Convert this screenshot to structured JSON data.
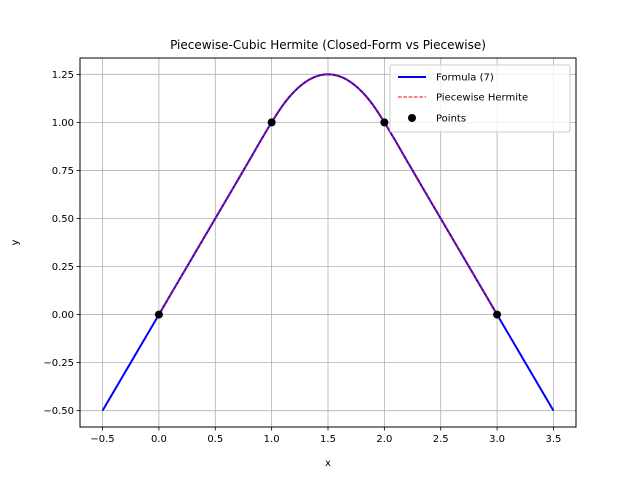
{
  "chart_data": {
    "type": "line",
    "title": "Piecewise-Cubic Hermite (Closed-Form vs Piecewise)",
    "xlabel": "x",
    "ylabel": "y",
    "xlim": [
      -0.7,
      3.7
    ],
    "ylim": [
      -0.585,
      1.335
    ],
    "xticks": [
      -0.5,
      0.0,
      0.5,
      1.0,
      1.5,
      2.0,
      2.5,
      3.0,
      3.5
    ],
    "xtick_labels": [
      "−0.5",
      "0.0",
      "0.5",
      "1.0",
      "1.5",
      "2.0",
      "2.5",
      "3.0",
      "3.5"
    ],
    "yticks": [
      -0.5,
      -0.25,
      0.0,
      0.25,
      0.5,
      0.75,
      1.0,
      1.25
    ],
    "ytick_labels": [
      "−0.50",
      "−0.25",
      "0.00",
      "0.25",
      "0.50",
      "0.75",
      "1.00",
      "1.25"
    ],
    "grid": true,
    "legend_position": "top-right",
    "series": [
      {
        "name": "Formula (7)",
        "style": "solid",
        "color": "#0000ff",
        "x": [
          -0.5,
          0.0,
          0.25,
          0.5,
          0.75,
          1.0,
          1.125,
          1.25,
          1.375,
          1.5,
          1.625,
          1.75,
          1.875,
          2.0,
          2.25,
          2.5,
          2.75,
          3.0,
          3.5
        ],
        "y": [
          -0.5,
          0.0,
          0.25,
          0.5,
          0.75,
          1.0,
          1.1094,
          1.1875,
          1.2344,
          1.25,
          1.2344,
          1.1875,
          1.1094,
          1.0,
          0.75,
          0.5,
          0.25,
          0.0,
          -0.5
        ]
      },
      {
        "name": "Piecewise Hermite",
        "style": "dashed",
        "color": "#ff0000",
        "x": [
          0.0,
          0.25,
          0.5,
          0.75,
          1.0,
          1.125,
          1.25,
          1.375,
          1.5,
          1.625,
          1.75,
          1.875,
          2.0,
          2.25,
          2.5,
          2.75,
          3.0
        ],
        "y": [
          0.0,
          0.25,
          0.5,
          0.75,
          1.0,
          1.1094,
          1.1875,
          1.2344,
          1.25,
          1.2344,
          1.1875,
          1.1094,
          1.0,
          0.75,
          0.5,
          0.25,
          0.0
        ]
      },
      {
        "name": "Points",
        "style": "marker",
        "color": "#000000",
        "x": [
          0.0,
          1.0,
          2.0,
          3.0
        ],
        "y": [
          0.0,
          1.0,
          1.0,
          0.0
        ]
      }
    ]
  }
}
